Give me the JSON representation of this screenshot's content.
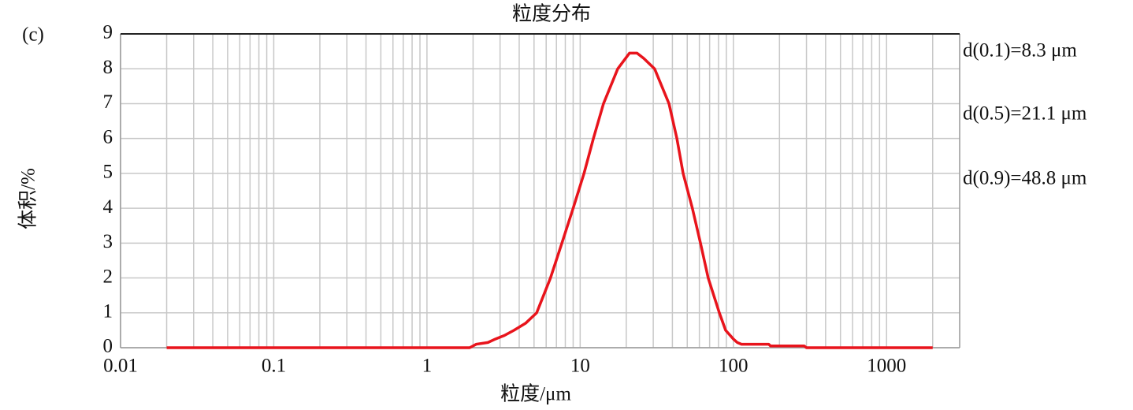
{
  "chart_data": {
    "type": "line",
    "title": "粒度分布",
    "panel_label": "(c)",
    "x_label": "粒度/μm",
    "y_label": "体积/%",
    "annotations": [
      "d(0.1)=8.3 μm",
      "d(0.5)=21.1 μm",
      "d(0.9)=48.8 μm"
    ],
    "x_log": true,
    "grid": true,
    "x_minor_grid": true,
    "xlim": [
      0.01,
      3000
    ],
    "xticks": [
      0.01,
      0.1,
      1,
      10,
      100,
      1000
    ],
    "ylim": [
      0,
      9
    ],
    "yticks": [
      0,
      1,
      2,
      3,
      4,
      5,
      6,
      7,
      8,
      9
    ],
    "series": [
      {
        "color": "#e8141c",
        "x": [
          0.02,
          1.9,
          2.1,
          2.5,
          2.8,
          3.2,
          3.7,
          4.4,
          5.2,
          6.4,
          7.6,
          9,
          10.6,
          12.2,
          14.2,
          17.6,
          21,
          23.5,
          26,
          30.6,
          38,
          42.8,
          47,
          54,
          61,
          68.5,
          81,
          89,
          100,
          106,
          113,
          170,
          175,
          290,
          300,
          2000
        ],
        "values": [
          0,
          0,
          0.1,
          0.15,
          0.25,
          0.35,
          0.5,
          0.7,
          1,
          2,
          3,
          4,
          5,
          6,
          7,
          8,
          8.45,
          8.45,
          8.3,
          8,
          7,
          6,
          5,
          4,
          3,
          2,
          1,
          0.5,
          0.25,
          0.15,
          0.1,
          0.1,
          0.05,
          0.05,
          0,
          0
        ]
      }
    ]
  }
}
